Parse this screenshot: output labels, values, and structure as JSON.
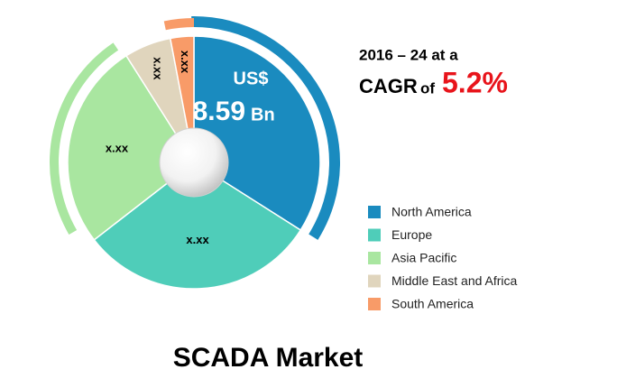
{
  "chart_data": {
    "type": "pie",
    "categories": [
      "North America",
      "Europe",
      "Asia Pacific",
      "Middle East and Africa",
      "South America"
    ],
    "values": [
      34,
      30.5,
      26.5,
      6,
      3
    ],
    "colors": [
      "#1a8bbf",
      "#4fcdb9",
      "#a9e6a0",
      "#e0d5bd",
      "#f89b68"
    ],
    "slice_labels": [
      null,
      "x.xx",
      "x.xx",
      "x.xx",
      "x.xx"
    ],
    "center_text": {
      "currency": "US$",
      "amount": "8.59",
      "unit": "Bn"
    },
    "cagr_text": {
      "line1": "2016 – 24 at a",
      "prefix": "CAGR",
      "of": "of",
      "rate": "5.2%"
    },
    "title": "SCADA Market",
    "legend": "right"
  }
}
